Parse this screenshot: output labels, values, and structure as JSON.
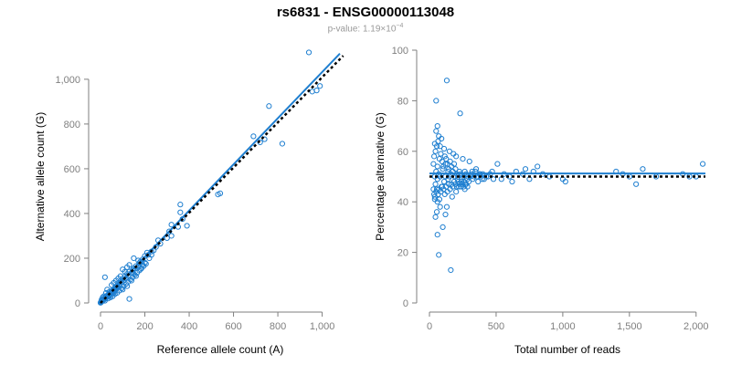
{
  "title": "rs6831 - ENSG00000113048",
  "subtitle": {
    "prefix": "p-value: 1.19×10",
    "exponent": "−4"
  },
  "colors": {
    "points": "#1f7fd0",
    "fit_line": "#1f7fd0",
    "reference_line": "#000000",
    "axis": "#7f7f7f"
  },
  "chart_data": [
    {
      "type": "scatter",
      "xlabel": "Reference allele count (A)",
      "ylabel": "Alternative allele count (G)",
      "xlim": [
        0,
        1080
      ],
      "ylim": [
        0,
        1130
      ],
      "xticks": [
        0,
        200,
        400,
        600,
        800,
        1000
      ],
      "xtick_labels": [
        "0",
        "200",
        "400",
        "600",
        "800",
        "1,000"
      ],
      "yticks": [
        0,
        200,
        400,
        600,
        800,
        1000
      ],
      "ytick_labels": [
        "0",
        "200",
        "400",
        "600",
        "800",
        "1,000"
      ],
      "fit_line": {
        "x": [
          0,
          1080
        ],
        "y": [
          0,
          1115
        ]
      },
      "reference_line": {
        "x": [
          0,
          1095
        ],
        "y": [
          0,
          1105
        ]
      },
      "points": [
        [
          940,
          1120
        ],
        [
          760,
          880
        ],
        [
          690,
          745
        ],
        [
          740,
          732
        ],
        [
          720,
          718
        ],
        [
          820,
          712
        ],
        [
          990,
          970
        ],
        [
          975,
          950
        ],
        [
          955,
          945
        ],
        [
          540,
          490
        ],
        [
          530,
          485
        ],
        [
          360,
          440
        ],
        [
          360,
          405
        ],
        [
          370,
          375
        ],
        [
          320,
          350
        ],
        [
          350,
          340
        ],
        [
          310,
          320
        ],
        [
          390,
          345
        ],
        [
          320,
          300
        ],
        [
          300,
          290
        ],
        [
          260,
          280
        ],
        [
          270,
          265
        ],
        [
          250,
          250
        ],
        [
          230,
          230
        ],
        [
          215,
          215
        ],
        [
          200,
          210
        ],
        [
          190,
          195
        ],
        [
          180,
          185
        ],
        [
          175,
          178
        ],
        [
          170,
          160
        ],
        [
          160,
          165
        ],
        [
          150,
          155
        ],
        [
          145,
          148
        ],
        [
          140,
          135
        ],
        [
          130,
          140
        ],
        [
          125,
          120
        ],
        [
          120,
          130
        ],
        [
          115,
          110
        ],
        [
          110,
          118
        ],
        [
          105,
          100
        ],
        [
          100,
          108
        ],
        [
          95,
          92
        ],
        [
          90,
          98
        ],
        [
          88,
          85
        ],
        [
          85,
          80
        ],
        [
          80,
          88
        ],
        [
          78,
          70
        ],
        [
          75,
          78
        ],
        [
          72,
          65
        ],
        [
          70,
          72
        ],
        [
          68,
          60
        ],
        [
          65,
          68
        ],
        [
          62,
          55
        ],
        [
          60,
          62
        ],
        [
          58,
          50
        ],
        [
          55,
          58
        ],
        [
          52,
          45
        ],
        [
          50,
          52
        ],
        [
          48,
          42
        ],
        [
          46,
          48
        ],
        [
          44,
          38
        ],
        [
          42,
          44
        ],
        [
          40,
          35
        ],
        [
          38,
          40
        ],
        [
          36,
          32
        ],
        [
          34,
          36
        ],
        [
          32,
          28
        ],
        [
          30,
          33
        ],
        [
          28,
          25
        ],
        [
          26,
          30
        ],
        [
          24,
          22
        ],
        [
          22,
          26
        ],
        [
          20,
          18
        ],
        [
          18,
          22
        ],
        [
          16,
          15
        ],
        [
          14,
          18
        ],
        [
          12,
          12
        ],
        [
          10,
          14
        ],
        [
          8,
          9
        ],
        [
          6,
          10
        ],
        [
          5,
          6
        ],
        [
          4,
          7
        ],
        [
          3,
          4
        ],
        [
          2,
          5
        ],
        [
          1,
          2
        ],
        [
          0,
          1
        ],
        [
          20,
          115
        ],
        [
          40,
          50
        ],
        [
          60,
          90
        ],
        [
          80,
          110
        ],
        [
          100,
          60
        ],
        [
          120,
          75
        ],
        [
          130,
          18
        ],
        [
          140,
          100
        ],
        [
          150,
          130
        ],
        [
          160,
          120
        ],
        [
          170,
          190
        ],
        [
          180,
          150
        ],
        [
          190,
          170
        ],
        [
          200,
          180
        ],
        [
          210,
          225
        ],
        [
          220,
          200
        ],
        [
          110,
          140
        ],
        [
          90,
          120
        ],
        [
          70,
          100
        ],
        [
          50,
          80
        ],
        [
          30,
          60
        ],
        [
          25,
          45
        ],
        [
          35,
          20
        ],
        [
          45,
          25
        ],
        [
          55,
          30
        ],
        [
          65,
          40
        ],
        [
          75,
          45
        ],
        [
          85,
          55
        ],
        [
          95,
          65
        ],
        [
          105,
          75
        ],
        [
          115,
          85
        ],
        [
          125,
          95
        ],
        [
          135,
          105
        ],
        [
          145,
          115
        ],
        [
          155,
          125
        ],
        [
          165,
          135
        ],
        [
          175,
          145
        ],
        [
          185,
          155
        ],
        [
          195,
          165
        ],
        [
          205,
          175
        ],
        [
          230,
          215
        ],
        [
          240,
          235
        ],
        [
          150,
          200
        ],
        [
          130,
          170
        ],
        [
          120,
          160
        ],
        [
          100,
          150
        ],
        [
          60,
          45
        ],
        [
          40,
          30
        ],
        [
          20,
          10
        ],
        [
          15,
          30
        ],
        [
          10,
          25
        ],
        [
          5,
          15
        ]
      ]
    },
    {
      "type": "scatter",
      "xlabel": "Total number of reads",
      "ylabel": "Percentage alternative (G)",
      "xlim": [
        0,
        2070
      ],
      "ylim": [
        0,
        100
      ],
      "xticks": [
        0,
        500,
        1000,
        1500,
        2000
      ],
      "xtick_labels": [
        "0",
        "500",
        "1,000",
        "1,500",
        "2,000"
      ],
      "yticks": [
        0,
        20,
        40,
        60,
        80,
        100
      ],
      "ytick_labels": [
        "0",
        "20",
        "40",
        "60",
        "80",
        "100"
      ],
      "fit_line": {
        "x": [
          0,
          2070
        ],
        "y": [
          51.2,
          51.2
        ]
      },
      "reference_line": {
        "x": [
          0,
          2070
        ],
        "y": [
          50,
          50
        ]
      },
      "points": [
        [
          130,
          88
        ],
        [
          50,
          80
        ],
        [
          230,
          75
        ],
        [
          60,
          70
        ],
        [
          50,
          68
        ],
        [
          70,
          66
        ],
        [
          90,
          65
        ],
        [
          40,
          63
        ],
        [
          80,
          62
        ],
        [
          110,
          61
        ],
        [
          150,
          60
        ],
        [
          180,
          59
        ],
        [
          200,
          58
        ],
        [
          250,
          57
        ],
        [
          300,
          56
        ],
        [
          120,
          55
        ],
        [
          60,
          54
        ],
        [
          100,
          53
        ],
        [
          140,
          52
        ],
        [
          160,
          51
        ],
        [
          190,
          50
        ],
        [
          210,
          49
        ],
        [
          240,
          48
        ],
        [
          270,
          47
        ],
        [
          90,
          46
        ],
        [
          70,
          45
        ],
        [
          50,
          44
        ],
        [
          40,
          42
        ],
        [
          60,
          40
        ],
        [
          80,
          38
        ],
        [
          55,
          36
        ],
        [
          45,
          34
        ],
        [
          60,
          27
        ],
        [
          70,
          19
        ],
        [
          160,
          13
        ],
        [
          100,
          30
        ],
        [
          120,
          35
        ],
        [
          130,
          38
        ],
        [
          170,
          42
        ],
        [
          200,
          44
        ],
        [
          220,
          46
        ],
        [
          260,
          48
        ],
        [
          290,
          50
        ],
        [
          320,
          52
        ],
        [
          350,
          53
        ],
        [
          380,
          51
        ],
        [
          410,
          49
        ],
        [
          440,
          50
        ],
        [
          470,
          52
        ],
        [
          510,
          55
        ],
        [
          540,
          49
        ],
        [
          560,
          51
        ],
        [
          600,
          50
        ],
        [
          620,
          48
        ],
        [
          650,
          52
        ],
        [
          700,
          51
        ],
        [
          720,
          53
        ],
        [
          750,
          49
        ],
        [
          780,
          52
        ],
        [
          810,
          54
        ],
        [
          850,
          51
        ],
        [
          900,
          50
        ],
        [
          1000,
          49
        ],
        [
          1020,
          48
        ],
        [
          1400,
          52
        ],
        [
          1450,
          51
        ],
        [
          1500,
          50
        ],
        [
          1550,
          47
        ],
        [
          1600,
          53
        ],
        [
          1700,
          50
        ],
        [
          1900,
          51
        ],
        [
          1950,
          50
        ],
        [
          2000,
          50
        ],
        [
          2050,
          55
        ],
        [
          30,
          55
        ],
        [
          35,
          58
        ],
        [
          45,
          60
        ],
        [
          55,
          62
        ],
        [
          65,
          64
        ],
        [
          75,
          57
        ],
        [
          85,
          59
        ],
        [
          95,
          56
        ],
        [
          105,
          54
        ],
        [
          115,
          58
        ],
        [
          125,
          57
        ],
        [
          135,
          55
        ],
        [
          145,
          53
        ],
        [
          155,
          56
        ],
        [
          165,
          54
        ],
        [
          175,
          52
        ],
        [
          185,
          55
        ],
        [
          195,
          53
        ],
        [
          205,
          51
        ],
        [
          215,
          50
        ],
        [
          225,
          52
        ],
        [
          235,
          51
        ],
        [
          245,
          49
        ],
        [
          255,
          50
        ],
        [
          265,
          52
        ],
        [
          275,
          51
        ],
        [
          285,
          49
        ],
        [
          295,
          48
        ],
        [
          305,
          50
        ],
        [
          315,
          51
        ],
        [
          325,
          49
        ],
        [
          335,
          50
        ],
        [
          345,
          52
        ],
        [
          355,
          50
        ],
        [
          365,
          48
        ],
        [
          375,
          51
        ],
        [
          385,
          50
        ],
        [
          395,
          49
        ],
        [
          400,
          51
        ],
        [
          425,
          50
        ],
        [
          455,
          51
        ],
        [
          480,
          49
        ],
        [
          30,
          45
        ],
        [
          35,
          43
        ],
        [
          40,
          41
        ],
        [
          45,
          47
        ],
        [
          55,
          45
        ],
        [
          65,
          43
        ],
        [
          75,
          41
        ],
        [
          85,
          44
        ],
        [
          95,
          46
        ],
        [
          105,
          45
        ],
        [
          115,
          43
        ],
        [
          125,
          46
        ],
        [
          135,
          44
        ],
        [
          145,
          47
        ],
        [
          155,
          45
        ],
        [
          165,
          47
        ],
        [
          175,
          46
        ],
        [
          185,
          48
        ],
        [
          195,
          47
        ],
        [
          205,
          46
        ],
        [
          215,
          48
        ],
        [
          225,
          47
        ],
        [
          235,
          46
        ],
        [
          245,
          47
        ],
        [
          255,
          46
        ],
        [
          265,
          45
        ],
        [
          275,
          47
        ],
        [
          285,
          46
        ],
        [
          110,
          48
        ],
        [
          120,
          50
        ],
        [
          140,
          49
        ],
        [
          150,
          50
        ],
        [
          80,
          50
        ],
        [
          70,
          51
        ],
        [
          60,
          49
        ],
        [
          50,
          52
        ],
        [
          40,
          50
        ]
      ]
    }
  ]
}
